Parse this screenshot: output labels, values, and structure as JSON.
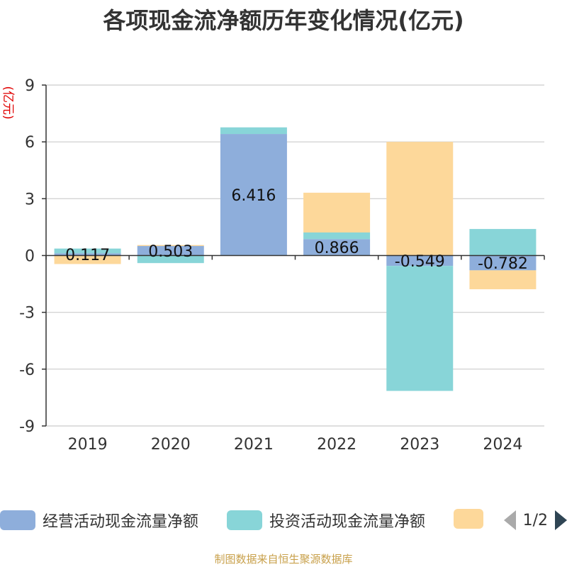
{
  "chart_data": {
    "type": "bar",
    "stacked": true,
    "title": "各项现金流净额历年变化情况(亿元)",
    "ylabel": "(亿元)",
    "xlabel": "",
    "categories": [
      "2019",
      "2020",
      "2021",
      "2022",
      "2023",
      "2024"
    ],
    "ylim": [
      -9,
      9
    ],
    "yticks": [
      -9,
      -6,
      -3,
      0,
      3,
      6,
      9
    ],
    "grid": true,
    "legend_position": "bottom",
    "series": [
      {
        "name": "经营活动现金流量净额",
        "color": "#8eaedb",
        "values": [
          0.117,
          0.503,
          6.416,
          0.866,
          -0.549,
          -0.782
        ],
        "show_labels": true
      },
      {
        "name": "投资活动现金流量净额",
        "color": "#88d5d8",
        "values": [
          0.25,
          -0.4,
          0.35,
          0.35,
          -6.6,
          1.4
        ],
        "show_labels": false
      },
      {
        "name": "",
        "color": "#fdd89a",
        "values": [
          -0.45,
          0.05,
          0.0,
          2.1,
          6.0,
          -1.0
        ],
        "show_labels": false
      }
    ]
  },
  "legend": {
    "items": [
      {
        "label": "经营活动现金流量净额",
        "color": "#8eaedb"
      },
      {
        "label": "投资活动现金流量净额",
        "color": "#88d5d8"
      },
      {
        "label": "",
        "color": "#fdd89a"
      }
    ],
    "page_text": "1/2"
  },
  "source_note": "制图数据来自恒生聚源数据库"
}
